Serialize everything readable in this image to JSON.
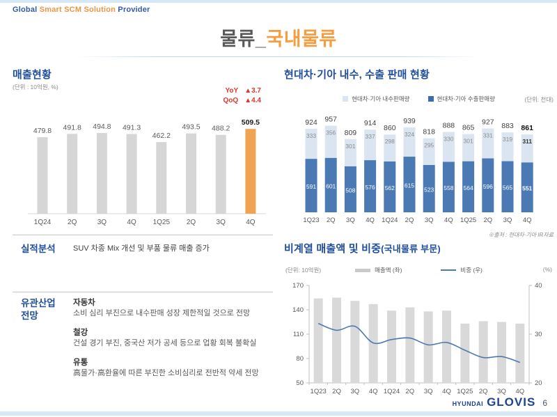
{
  "brand": {
    "global": "Global",
    "smart": "Smart SCM Solution",
    "provider": "Provider"
  },
  "title": {
    "prefix": "물류_",
    "highlight": "국내물류"
  },
  "left": {
    "sales": {
      "heading": "매출현황",
      "unit": "(단위 : 10억원, %)",
      "yoy_label": "YoY",
      "yoy_value": "▲3.7",
      "qoq_label": "QoQ",
      "qoq_value": "▲4.4"
    },
    "analysis": {
      "label": "실적분석",
      "text": "SUV 차종 Mix 개선 및 부품 물류 매출 증가"
    },
    "outlook": {
      "label": "유관산업\n전망",
      "items": [
        {
          "name": "자동차",
          "desc": "소비 심리 부진으로 내수판매 성장 제한적일 것으로 전망"
        },
        {
          "name": "철강",
          "desc": "건설 경기 부진, 중국산 저가 공세 등으로 업황 회복 불확실"
        },
        {
          "name": "유통",
          "desc": "高물가·高환율에 따른 부진한 소비심리로 전반적 약세 전망"
        }
      ]
    }
  },
  "right": {
    "hk_heading": "현대차·기아 내수, 수출 판매 현황",
    "hk_unit": "(단위: 천대)",
    "source": "※출처 : 현대차·기아 IR자료",
    "na_heading": "비계열 매출액 및 비중",
    "na_heading_sub": "(국내물류 부문)",
    "na_unit_left": "(단위: 10억원)",
    "na_unit_right": "(%)"
  },
  "footer": {
    "logo_hyundai": "HYUNDAI",
    "logo_glovis": "GLOVIS",
    "page_number": "6"
  },
  "chart_data": [
    {
      "id": "sales",
      "type": "bar",
      "title": "매출현황",
      "unit": "(단위 : 10억원, %)",
      "categories": [
        "1Q24",
        "2Q",
        "3Q",
        "4Q",
        "1Q25",
        "2Q",
        "3Q",
        "4Q"
      ],
      "values": [
        479.8,
        491.8,
        494.8,
        491.3,
        462.2,
        493.5,
        488.2,
        509.5
      ],
      "highlight_index": 7,
      "bar_color": "#d6d6d6",
      "highlight_color": "#f0a351",
      "yoy": "▲3.7",
      "qoq": "▲4.4",
      "grid": false,
      "value_labels": true
    },
    {
      "id": "hyundai-kia-sales",
      "type": "stacked-bar",
      "title": "현대차·기아 내수, 수출 판매 현황",
      "unit": "(단위: 천대)",
      "categories": [
        "1Q23",
        "2Q",
        "3Q",
        "4Q",
        "1Q24",
        "2Q",
        "3Q",
        "4Q",
        "1Q25",
        "2Q",
        "3Q",
        "4Q"
      ],
      "series": [
        {
          "name": "현대차·기아 내수판매량",
          "color": "#dbe5f1",
          "values": [
            333,
            356,
            301,
            337,
            298,
            324,
            295,
            330,
            301,
            331,
            319,
            311
          ]
        },
        {
          "name": "현대차·기아 수출판매량",
          "color": "#4a79b4",
          "values": [
            591,
            601,
            508,
            576,
            562,
            615,
            523,
            558,
            564,
            596,
            565,
            551
          ]
        }
      ],
      "totals": [
        924,
        957,
        809,
        914,
        860,
        939,
        818,
        888,
        865,
        927,
        883,
        861
      ],
      "highlight_index": 11,
      "legend_position": "top",
      "source": "※출처 : 현대차·기아 IR자료"
    },
    {
      "id": "non-affiliate-revenue",
      "type": "bar+line",
      "title": "비계열 매출액 및 비중(국내물류 부문)",
      "unit_left": "(단위: 10억원)",
      "unit_right": "(%)",
      "categories": [
        "1Q23",
        "2Q",
        "3Q",
        "4Q",
        "1Q24",
        "2Q",
        "3Q",
        "4Q",
        "1Q25",
        "2Q",
        "3Q",
        "4Q"
      ],
      "bar_series": {
        "name": "매출액 (좌)",
        "color": "#d9d9d9",
        "axis": "left",
        "values": [
          154,
          155,
          151,
          147,
          139,
          143,
          138,
          139,
          123,
          126,
          125,
          123
        ]
      },
      "line_series": {
        "name": "비중 (우)",
        "color": "#4b79b0",
        "axis": "right",
        "values": [
          32.2,
          30.8,
          31.6,
          28.2,
          28.9,
          29.2,
          27.8,
          28.3,
          26.7,
          25.2,
          25.4,
          24.2
        ]
      },
      "ylim_left": [
        50,
        170
      ],
      "yticks_left": [
        50,
        80,
        110,
        140,
        170
      ],
      "ylim_right": [
        20,
        40
      ],
      "yticks_right": [
        20,
        30,
        40
      ],
      "grid": false,
      "legend_position": "top"
    }
  ]
}
